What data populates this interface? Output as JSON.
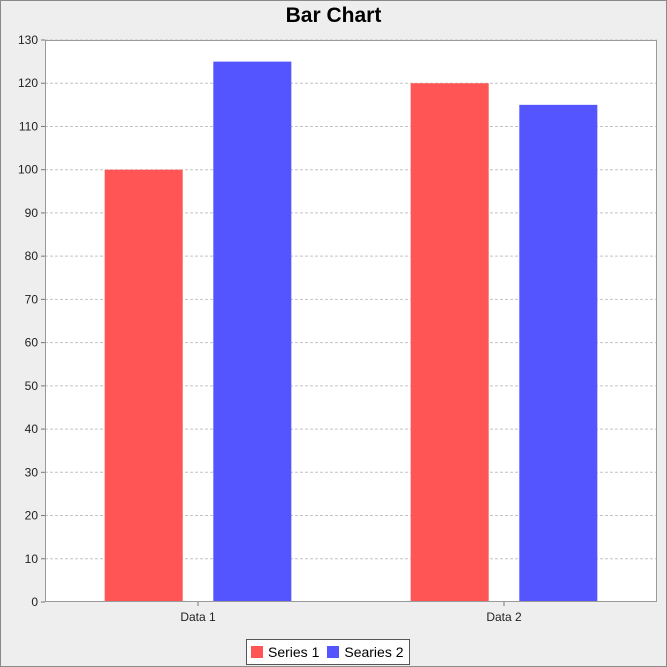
{
  "chart_data": {
    "type": "bar",
    "title": "Bar Chart",
    "xlabel": "",
    "ylabel": "",
    "categories": [
      "Data 1",
      "Data 2"
    ],
    "series": [
      {
        "name": "Series 1",
        "values": [
          100,
          120
        ],
        "color": "#ff5555"
      },
      {
        "name": "Searies 2",
        "values": [
          125,
          115
        ],
        "color": "#5555ff"
      }
    ],
    "ylim": [
      0,
      130
    ],
    "yticks": [
      "0",
      "10",
      "20",
      "30",
      "40",
      "50",
      "60",
      "70",
      "80",
      "90",
      "100",
      "110",
      "120",
      "130"
    ],
    "grid": true,
    "legend_position": "bottom"
  }
}
